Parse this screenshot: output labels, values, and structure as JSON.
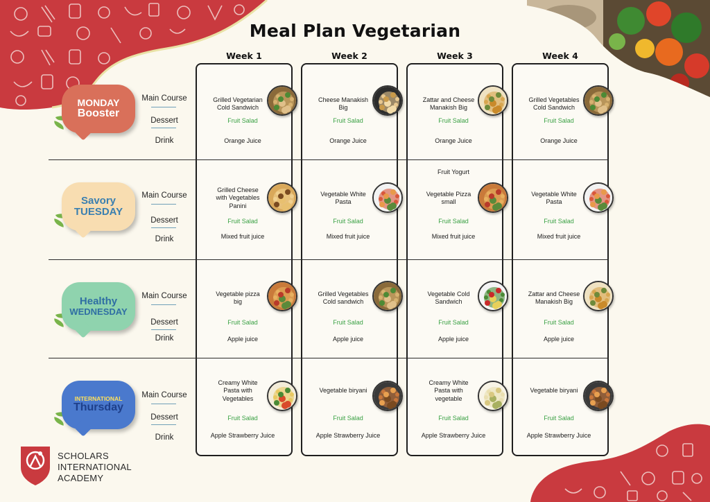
{
  "title": "Meal Plan Vegetarian",
  "weeks": [
    "Week 1",
    "Week 2",
    "Week 3",
    "Week 4"
  ],
  "course_labels": {
    "main": "Main Course",
    "dessert": "Dessert",
    "drink": "Drink"
  },
  "days": [
    {
      "line1": "MONDAY",
      "line2": "Booster",
      "color": "#d9705a",
      "text_color": "#ffffff",
      "text_color2": "#ffffff"
    },
    {
      "line1": "Savory",
      "line2": "TUESDAY",
      "color": "#f8ddb1",
      "text_color": "#3a7fb0",
      "text_color2": "#3a7fb0"
    },
    {
      "line1": "Healthy",
      "line2": "WEDNESDAY",
      "color": "#8fd3ae",
      "text_color": "#2f6ea3",
      "text_color2": "#2f6ea3"
    },
    {
      "line1": "INTERNATIONAL",
      "line2": "Thursday",
      "color": "#4a79cd",
      "text_color": "#ffe15c",
      "text_color2": "#1e3f8a"
    }
  ],
  "meals": [
    [
      {
        "main": "Grilled Vegetarian Cold Sandwich",
        "dessert": "Fruit Salad",
        "drink": "Orange Juice",
        "photo": "sandwich"
      },
      {
        "main": "Cheese Manakish Big",
        "dessert": "Fruit Salad",
        "drink": "Orange Juice",
        "photo": "manakish"
      },
      {
        "main": "Zattar and Cheese Manakish Big",
        "dessert": "Fruit Salad",
        "drink": "Orange Juice",
        "photo": "zattar"
      },
      {
        "main": "Grilled Vegetables Cold Sandwich",
        "dessert": "Fruit Salad",
        "drink": "Orange Juice",
        "photo": "sandwich"
      }
    ],
    [
      {
        "main": "Grilled Cheese with Vegetables Panini",
        "dessert": "Fruit Salad",
        "drink": "Mixed fruit juice",
        "photo": "panini"
      },
      {
        "main": "Vegetable White Pasta",
        "dessert": "Fruit Salad",
        "drink": "Mixed fruit juice",
        "photo": "pasta-bowl"
      },
      {
        "extra": "Fruit Yogurt",
        "main": "Vegetable Pizza small",
        "dessert": "Fruit Salad",
        "drink": "Mixed fruit juice",
        "photo": "pizza"
      },
      {
        "main": "Vegetable White Pasta",
        "dessert": "Fruit Salad",
        "drink": "Mixed fruit juice",
        "photo": "pasta-bowl"
      }
    ],
    [
      {
        "main": "Vegetable pizza big",
        "dessert": "Fruit Salad",
        "drink": "Apple juice",
        "photo": "pizza"
      },
      {
        "main": "Grilled Vegetables Cold sandwich",
        "dessert": "Fruit Salad",
        "drink": "Apple juice",
        "photo": "sandwich"
      },
      {
        "main": "Vegetable Cold Sandwich",
        "dessert": "Fruit Salad",
        "drink": "Apple juice",
        "photo": "salad"
      },
      {
        "main": "Zattar and Cheese Manakish Big",
        "dessert": "Fruit Salad",
        "drink": "Apple juice",
        "photo": "zattar"
      }
    ],
    [
      {
        "main": "Creamy White Pasta with Vegetables",
        "dessert": "Fruit Salad",
        "drink": "Apple Strawberry Juice",
        "photo": "pasta-veg"
      },
      {
        "main": "Vegetable biryani",
        "dessert": "Fruit Salad",
        "drink": "Apple Strawberry Juice",
        "photo": "biryani"
      },
      {
        "main": "Creamy White Pasta with vegetable",
        "dessert": "Fruit Salad",
        "drink": "Apple Strawberry Juice",
        "photo": "pasta-white"
      },
      {
        "main": "Vegetable biryani",
        "dessert": "Fruit Salad",
        "drink": "Apple Strawberry Juice",
        "photo": "biryani"
      }
    ]
  ],
  "logo": {
    "line1": "SCHOLARS",
    "line2": "INTERNATIONAL",
    "line3": "ACADEMY"
  },
  "colors": {
    "accent_red": "#c93a3f",
    "fruit_green": "#3aa144",
    "background": "#fbf8ee"
  }
}
